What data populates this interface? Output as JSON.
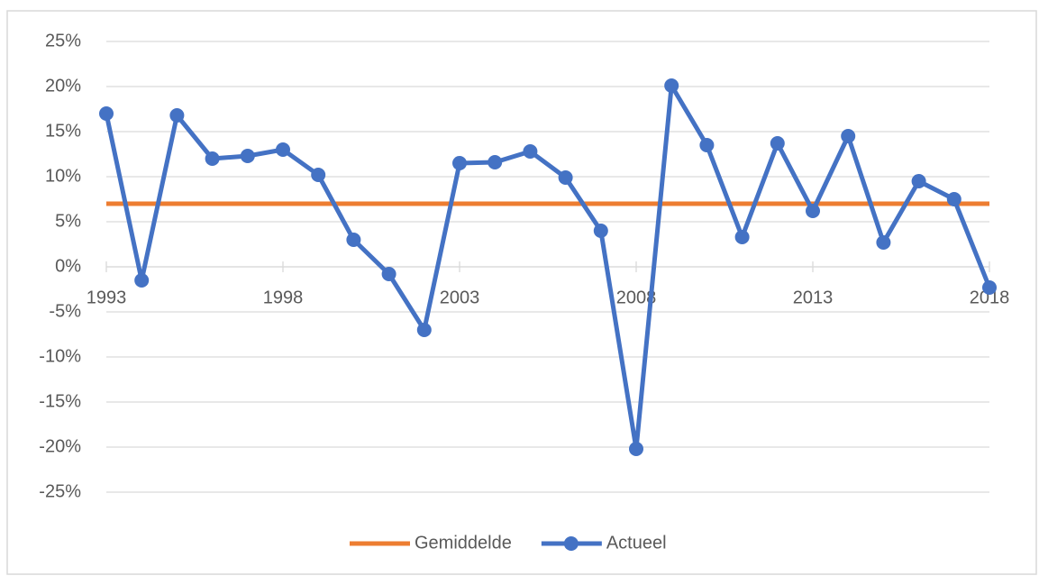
{
  "chart_data": {
    "type": "line",
    "x": [
      1993,
      1994,
      1995,
      1996,
      1997,
      1998,
      1999,
      2000,
      2001,
      2002,
      2003,
      2004,
      2005,
      2006,
      2007,
      2008,
      2009,
      2010,
      2011,
      2012,
      2013,
      2014,
      2015,
      2016,
      2017,
      2018
    ],
    "series": [
      {
        "name": "Gemiddelde",
        "color": "#ed7d31",
        "values": [
          7,
          7,
          7,
          7,
          7,
          7,
          7,
          7,
          7,
          7,
          7,
          7,
          7,
          7,
          7,
          7,
          7,
          7,
          7,
          7,
          7,
          7,
          7,
          7,
          7,
          7
        ]
      },
      {
        "name": "Actueel",
        "color": "#4472c4",
        "marker": "circle",
        "values": [
          17,
          -1.5,
          16.8,
          12,
          12.3,
          13,
          10.2,
          3,
          -0.8,
          -7,
          11.5,
          11.6,
          12.8,
          9.9,
          4,
          -20.2,
          20.1,
          13.5,
          3.3,
          13.7,
          6.2,
          14.5,
          2.7,
          9.5,
          7.5,
          -2.3
        ]
      }
    ],
    "xlim": [
      1993,
      2018
    ],
    "xticks": [
      1993,
      1998,
      2003,
      2008,
      2013,
      2018
    ],
    "ylim": [
      -25,
      25
    ],
    "yticks": [
      {
        "value": -25,
        "label": "-25%"
      },
      {
        "value": -20,
        "label": "-20%"
      },
      {
        "value": -15,
        "label": "-15%"
      },
      {
        "value": -10,
        "label": "-10%"
      },
      {
        "value": -5,
        "label": "-5%"
      },
      {
        "value": 0,
        "label": "0%"
      },
      {
        "value": 5,
        "label": "5%"
      },
      {
        "value": 10,
        "label": "10%"
      },
      {
        "value": 15,
        "label": "15%"
      },
      {
        "value": 20,
        "label": "20%"
      },
      {
        "value": 25,
        "label": "25%"
      }
    ],
    "grid": true,
    "legend": "bottom"
  }
}
